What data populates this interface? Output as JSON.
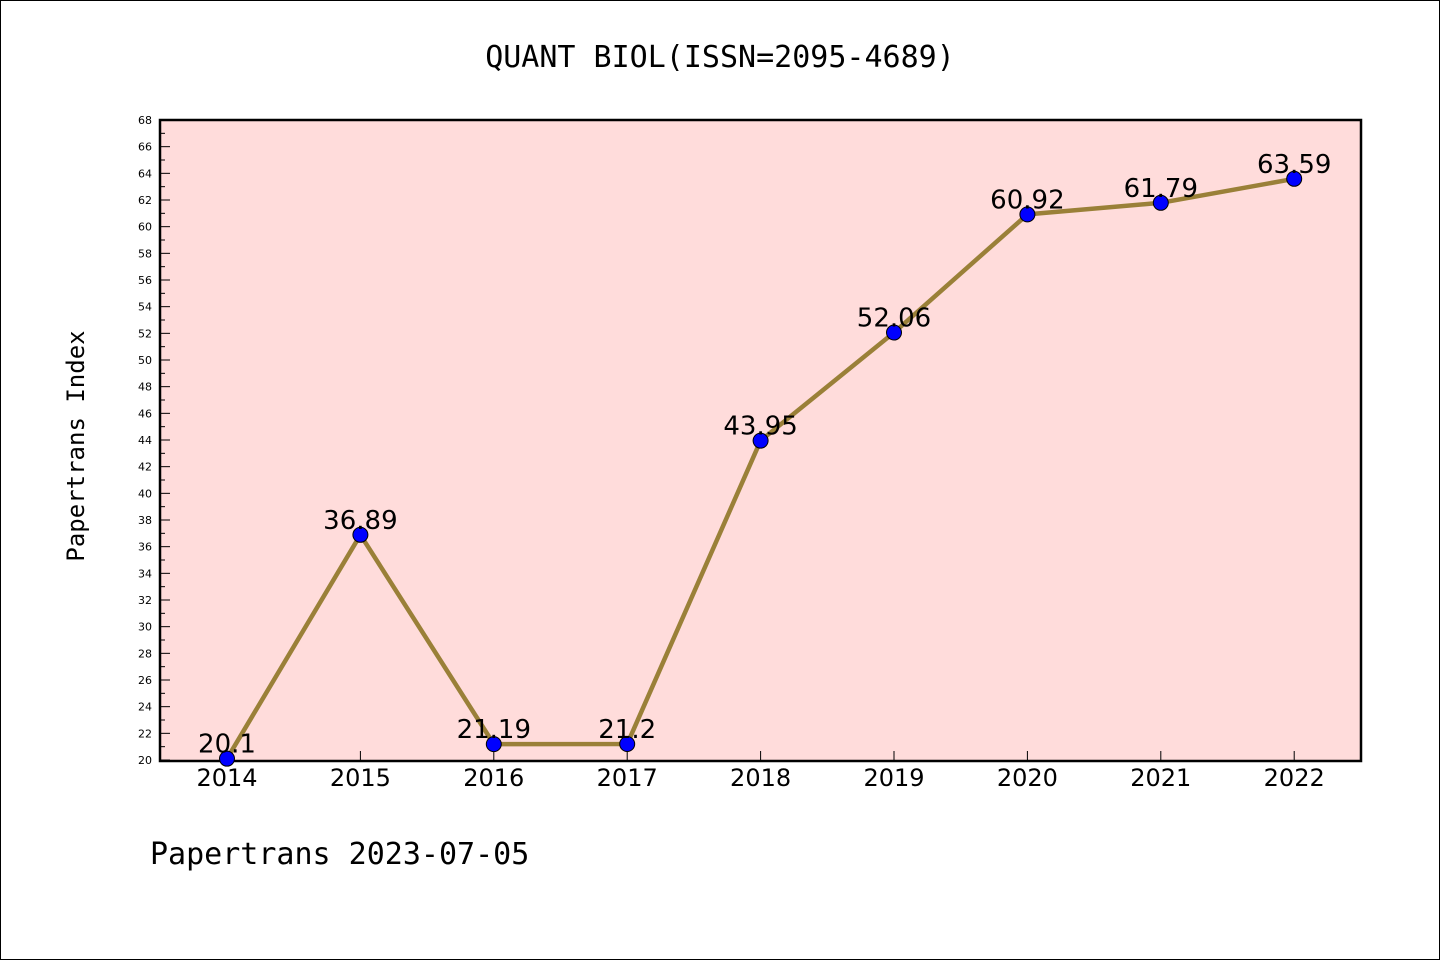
{
  "chart_data": {
    "type": "line",
    "title": "QUANT BIOL(ISSN=2095-4689)",
    "ylabel": "Papertrans Index",
    "xlabel": "",
    "footer": "Papertrans 2023-07-05",
    "categories": [
      "2014",
      "2015",
      "2016",
      "2017",
      "2018",
      "2019",
      "2020",
      "2021",
      "2022"
    ],
    "series": [
      {
        "values": [
          20.1,
          36.89,
          21.19,
          21.2,
          43.95,
          52.06,
          60.92,
          61.79,
          63.59
        ],
        "labels": [
          "20.1",
          "36.89",
          "21.19",
          "21.2",
          "43.95",
          "52.06",
          "60.92",
          "61.79",
          "63.59"
        ]
      }
    ],
    "ylim": [
      20,
      68
    ],
    "yticks": [
      20,
      22,
      24,
      26,
      28,
      30,
      32,
      34,
      36,
      38,
      40,
      42,
      44,
      46,
      48,
      50,
      52,
      54,
      56,
      58,
      60,
      62,
      64,
      66,
      68
    ],
    "grid": false,
    "colors": {
      "plot_background": "#ffdcdb",
      "line": "#9a8038",
      "marker": "#0000ff",
      "marker_edge": "#000000"
    }
  }
}
